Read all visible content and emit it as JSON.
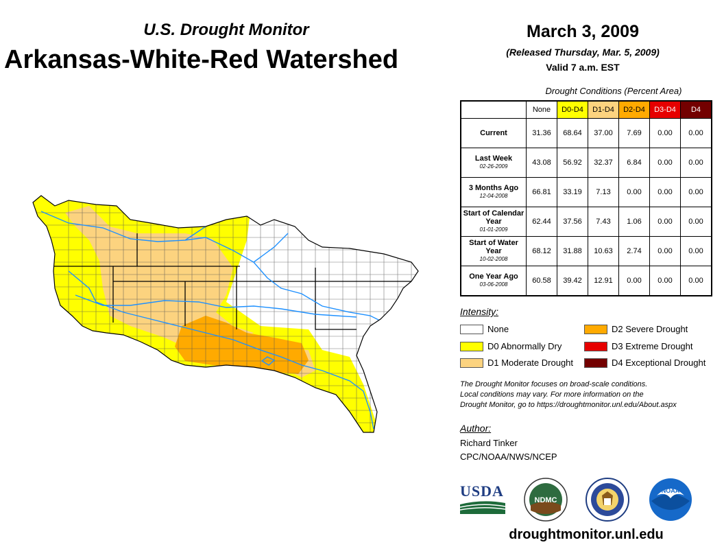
{
  "header": {
    "subtitle": "U.S. Drought Monitor",
    "title": "Arkansas-White-Red Watershed",
    "date": "March 3, 2009",
    "released": "(Released Thursday, Mar. 5, 2009)",
    "valid": "Valid 7 a.m. EST"
  },
  "table": {
    "caption": "Drought Conditions (Percent Area)",
    "columns": [
      "None",
      "D0-D4",
      "D1-D4",
      "D2-D4",
      "D3-D4",
      "D4"
    ],
    "rows": [
      {
        "label": "Current",
        "sub": "",
        "values": [
          "31.36",
          "68.64",
          "37.00",
          "7.69",
          "0.00",
          "0.00"
        ]
      },
      {
        "label": "Last Week",
        "sub": "02-26-2009",
        "values": [
          "43.08",
          "56.92",
          "32.37",
          "6.84",
          "0.00",
          "0.00"
        ]
      },
      {
        "label": "3 Months Ago",
        "sub": "12-04-2008",
        "values": [
          "66.81",
          "33.19",
          "7.13",
          "0.00",
          "0.00",
          "0.00"
        ]
      },
      {
        "label": "Start of Calendar Year",
        "sub": "01-01-2009",
        "values": [
          "62.44",
          "37.56",
          "7.43",
          "1.06",
          "0.00",
          "0.00"
        ]
      },
      {
        "label": "Start of Water Year",
        "sub": "10-02-2008",
        "values": [
          "68.12",
          "31.88",
          "10.63",
          "2.74",
          "0.00",
          "0.00"
        ]
      },
      {
        "label": "One Year Ago",
        "sub": "03-06-2008",
        "values": [
          "60.58",
          "39.42",
          "12.91",
          "0.00",
          "0.00",
          "0.00"
        ]
      }
    ]
  },
  "legend": {
    "title": "Intensity:",
    "items": [
      {
        "label": "None",
        "color": "#ffffff"
      },
      {
        "label": "D0 Abnormally Dry",
        "color": "#ffff00"
      },
      {
        "label": "D1 Moderate Drought",
        "color": "#fcd37f"
      },
      {
        "label": "D2 Severe Drought",
        "color": "#ffaa00"
      },
      {
        "label": "D3 Extreme Drought",
        "color": "#e60000"
      },
      {
        "label": "D4 Exceptional Drought",
        "color": "#730000"
      }
    ]
  },
  "note": {
    "line1": "The Drought Monitor focuses on broad-scale conditions.",
    "line2": "Local conditions may vary. For more information on the",
    "line3": "Drought Monitor, go to https://droughtmonitor.unl.edu/About.aspx"
  },
  "author": {
    "title": "Author:",
    "name": "Richard Tinker",
    "org": "CPC/NOAA/NWS/NCEP"
  },
  "logos": {
    "usda": "USDA",
    "ndmc": "NDMC",
    "noaa": "NOAA"
  },
  "footer": {
    "site": "droughtmonitor.unl.edu"
  }
}
